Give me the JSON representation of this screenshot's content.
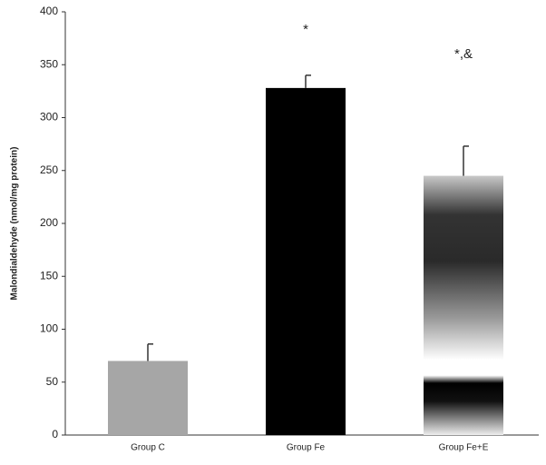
{
  "chart_data": {
    "type": "bar",
    "y_label": "Malondialdehyde (nmol/mg protein)",
    "categories": [
      "Group C",
      "Group Fe",
      "Group Fe+E"
    ],
    "values": [
      70,
      328,
      245
    ],
    "errors": [
      16,
      12,
      28
    ],
    "colors": [
      "#a6a6a6",
      "#000000",
      "#333333"
    ],
    "annotations": [
      {
        "category": "Group Fe",
        "text": "*"
      },
      {
        "category": "Group Fe+E",
        "text": "*,&"
      }
    ],
    "ylim": [
      0,
      400
    ],
    "yticks": [
      0,
      50,
      100,
      150,
      200,
      250,
      300,
      350,
      400
    ],
    "grid": false
  }
}
